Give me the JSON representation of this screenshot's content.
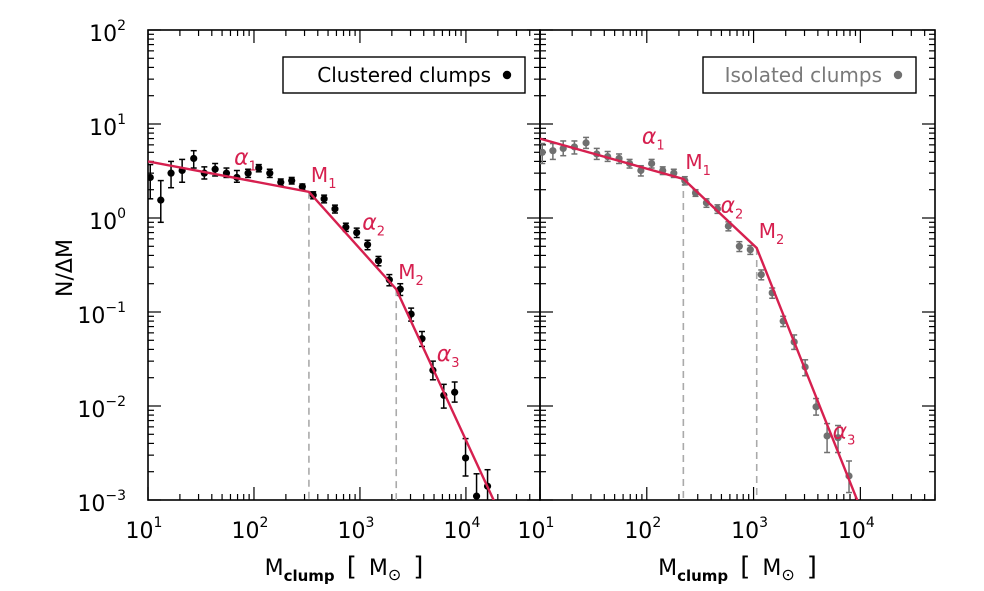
{
  "chart_data": [
    {
      "type": "scatter",
      "panel": "left",
      "xscale": "log",
      "yscale": "log",
      "xlim": [
        10,
        50000
      ],
      "ylim": [
        0.001,
        100
      ],
      "xlabel": "M_clump [ M_⊙ ]",
      "ylabel": "N/ΔM",
      "legend": {
        "label": "Clustered clumps",
        "placement": "top-right"
      },
      "colors": {
        "points": "#000000",
        "fit": "#d6204f",
        "break_lines": "#aaaaaa"
      },
      "points": [
        {
          "x": 10.5,
          "y": 2.7,
          "err": [
            1.6,
            3.7
          ]
        },
        {
          "x": 13.2,
          "y": 1.55,
          "err": [
            0.9,
            2.5
          ]
        },
        {
          "x": 16.5,
          "y": 3.0,
          "err": [
            2.1,
            4.0
          ]
        },
        {
          "x": 21,
          "y": 3.2,
          "err": [
            2.4,
            4.2
          ]
        },
        {
          "x": 27,
          "y": 4.3,
          "err": [
            3.4,
            5.2
          ]
        },
        {
          "x": 34,
          "y": 3.0,
          "err": [
            2.6,
            3.5
          ]
        },
        {
          "x": 43,
          "y": 3.3,
          "err": [
            2.8,
            3.8
          ]
        },
        {
          "x": 55,
          "y": 3.0,
          "err": [
            2.7,
            3.4
          ]
        },
        {
          "x": 69,
          "y": 2.7,
          "err": [
            2.4,
            3.2
          ]
        },
        {
          "x": 88,
          "y": 3.0,
          "err": [
            2.7,
            3.3
          ]
        },
        {
          "x": 111,
          "y": 3.4,
          "err": [
            3.1,
            3.7
          ]
        },
        {
          "x": 141,
          "y": 3.0,
          "err": [
            2.7,
            3.3
          ]
        },
        {
          "x": 179,
          "y": 2.4,
          "err": [
            2.2,
            2.6
          ]
        },
        {
          "x": 227,
          "y": 2.5,
          "err": [
            2.3,
            2.7
          ]
        },
        {
          "x": 286,
          "y": 2.15,
          "err": [
            2.0,
            2.3
          ]
        },
        {
          "x": 362,
          "y": 1.75,
          "err": [
            1.6,
            1.9
          ]
        },
        {
          "x": 459,
          "y": 1.6,
          "err": [
            1.45,
            1.75
          ]
        },
        {
          "x": 581,
          "y": 1.25,
          "err": [
            1.13,
            1.37
          ]
        },
        {
          "x": 736,
          "y": 0.8,
          "err": [
            0.72,
            0.88
          ]
        },
        {
          "x": 932,
          "y": 0.7,
          "err": [
            0.62,
            0.78
          ]
        },
        {
          "x": 1180,
          "y": 0.52,
          "err": [
            0.46,
            0.58
          ]
        },
        {
          "x": 1495,
          "y": 0.35,
          "err": [
            0.31,
            0.39
          ]
        },
        {
          "x": 1894,
          "y": 0.22,
          "err": [
            0.19,
            0.25
          ]
        },
        {
          "x": 2400,
          "y": 0.175,
          "err": [
            0.15,
            0.2
          ]
        },
        {
          "x": 3040,
          "y": 0.095,
          "err": [
            0.08,
            0.11
          ]
        },
        {
          "x": 3850,
          "y": 0.052,
          "err": [
            0.043,
            0.062
          ]
        },
        {
          "x": 4880,
          "y": 0.024,
          "err": [
            0.019,
            0.03
          ]
        },
        {
          "x": 6180,
          "y": 0.013,
          "err": [
            0.0095,
            0.017
          ]
        },
        {
          "x": 7830,
          "y": 0.014,
          "err": [
            0.011,
            0.018
          ]
        },
        {
          "x": 9920,
          "y": 0.0028,
          "err": [
            0.0018,
            0.0045
          ]
        },
        {
          "x": 12600,
          "y": 0.0011,
          "err": [
            0.0006,
            0.0019
          ]
        },
        {
          "x": 16000,
          "y": 0.0014,
          "err": [
            0.0009,
            0.0021
          ]
        }
      ],
      "fit": [
        [
          10,
          4.0
        ],
        [
          330,
          1.9
        ],
        [
          2200,
          0.175
        ],
        [
          20000,
          0.0008
        ]
      ],
      "breaks": [
        {
          "label": "M_1",
          "x": 330
        },
        {
          "label": "M_2",
          "x": 2200
        }
      ],
      "slopes": [
        {
          "label": "α_1",
          "x": 65,
          "y": 3.7
        },
        {
          "label": "α_2",
          "x": 1050,
          "y": 0.75
        },
        {
          "label": "α_3",
          "x": 5300,
          "y": 0.03
        }
      ]
    },
    {
      "type": "scatter",
      "panel": "right",
      "xscale": "log",
      "yscale": "log",
      "xlim": [
        10,
        50000
      ],
      "ylim": [
        0.001,
        100
      ],
      "xlabel": "M_clump [ M_⊙ ]",
      "legend": {
        "label": "Isolated clumps",
        "placement": "top-right"
      },
      "colors": {
        "points": "#707070",
        "fit": "#d6204f",
        "break_lines": "#aaaaaa",
        "legend_text": "#7a7a7a"
      },
      "points": [
        {
          "x": 10.5,
          "y": 5.0,
          "err": [
            3.8,
            6.2
          ]
        },
        {
          "x": 13.2,
          "y": 5.2,
          "err": [
            4.2,
            6.2
          ]
        },
        {
          "x": 16.5,
          "y": 5.5,
          "err": [
            4.6,
            6.6
          ]
        },
        {
          "x": 21,
          "y": 5.7,
          "err": [
            4.8,
            6.6
          ]
        },
        {
          "x": 27,
          "y": 6.3,
          "err": [
            5.5,
            7.2
          ]
        },
        {
          "x": 34,
          "y": 4.8,
          "err": [
            4.2,
            5.5
          ]
        },
        {
          "x": 43,
          "y": 4.5,
          "err": [
            4.0,
            5.1
          ]
        },
        {
          "x": 55,
          "y": 4.3,
          "err": [
            3.8,
            4.8
          ]
        },
        {
          "x": 69,
          "y": 3.8,
          "err": [
            3.4,
            4.2
          ]
        },
        {
          "x": 88,
          "y": 3.2,
          "err": [
            2.8,
            3.6
          ]
        },
        {
          "x": 111,
          "y": 3.8,
          "err": [
            3.4,
            4.2
          ]
        },
        {
          "x": 141,
          "y": 3.2,
          "err": [
            2.9,
            3.5
          ]
        },
        {
          "x": 179,
          "y": 3.0,
          "err": [
            2.7,
            3.3
          ]
        },
        {
          "x": 227,
          "y": 2.5,
          "err": [
            2.25,
            2.75
          ]
        },
        {
          "x": 286,
          "y": 1.85,
          "err": [
            1.7,
            2.0
          ]
        },
        {
          "x": 362,
          "y": 1.45,
          "err": [
            1.3,
            1.6
          ]
        },
        {
          "x": 459,
          "y": 1.25,
          "err": [
            1.12,
            1.38
          ]
        },
        {
          "x": 581,
          "y": 0.82,
          "err": [
            0.73,
            0.91
          ]
        },
        {
          "x": 736,
          "y": 0.5,
          "err": [
            0.44,
            0.56
          ]
        },
        {
          "x": 932,
          "y": 0.46,
          "err": [
            0.41,
            0.51
          ]
        },
        {
          "x": 1180,
          "y": 0.25,
          "err": [
            0.22,
            0.28
          ]
        },
        {
          "x": 1495,
          "y": 0.16,
          "err": [
            0.14,
            0.18
          ]
        },
        {
          "x": 1894,
          "y": 0.08,
          "err": [
            0.07,
            0.09
          ]
        },
        {
          "x": 2400,
          "y": 0.048,
          "err": [
            0.04,
            0.057
          ]
        },
        {
          "x": 3040,
          "y": 0.026,
          "err": [
            0.021,
            0.031
          ]
        },
        {
          "x": 3850,
          "y": 0.0098,
          "err": [
            0.008,
            0.012
          ]
        },
        {
          "x": 4880,
          "y": 0.0048,
          "err": [
            0.0032,
            0.0065
          ]
        },
        {
          "x": 6180,
          "y": 0.0046,
          "err": [
            0.0032,
            0.0062
          ]
        },
        {
          "x": 7830,
          "y": 0.0018,
          "err": [
            0.0012,
            0.0026
          ]
        }
      ],
      "fit": [
        [
          10,
          7.0
        ],
        [
          220,
          2.6
        ],
        [
          1070,
          0.48
        ],
        [
          9500,
          0.00095
        ]
      ],
      "breaks": [
        {
          "label": "M_1",
          "x": 220
        },
        {
          "label": "M_2",
          "x": 1070
        }
      ],
      "slopes": [
        {
          "label": "α_1",
          "x": 90,
          "y": 6.2
        },
        {
          "label": "α_2",
          "x": 490,
          "y": 1.15
        },
        {
          "label": "α_3",
          "x": 5500,
          "y": 0.0045
        }
      ]
    }
  ],
  "y_axis_ticks": [
    {
      "base": "10",
      "exp": "2",
      "value": 100
    },
    {
      "base": "10",
      "exp": "1",
      "value": 10
    },
    {
      "base": "10",
      "exp": "0",
      "value": 1
    },
    {
      "base": "10",
      "exp": "−1",
      "value": 0.1
    },
    {
      "base": "10",
      "exp": "−2",
      "value": 0.01
    },
    {
      "base": "10",
      "exp": "−3",
      "value": 0.001
    }
  ],
  "x_axis_ticks": [
    {
      "base": "10",
      "exp": "1",
      "value": 10
    },
    {
      "base": "10",
      "exp": "2",
      "value": 100
    },
    {
      "base": "10",
      "exp": "3",
      "value": 1000
    },
    {
      "base": "10",
      "exp": "4",
      "value": 10000
    }
  ],
  "x_label_parts": {
    "m": "M",
    "sub": "clump",
    "open": "[",
    "unit": "M",
    "sun": "⊙",
    "close": "]"
  },
  "break_label_parts": {
    "m": "M",
    "sub1": "1",
    "sub2": "2"
  },
  "slope_label_parts": {
    "alpha": "α",
    "sub1": "1",
    "sub2": "2",
    "sub3": "3"
  },
  "y_label": "N/ΔM"
}
